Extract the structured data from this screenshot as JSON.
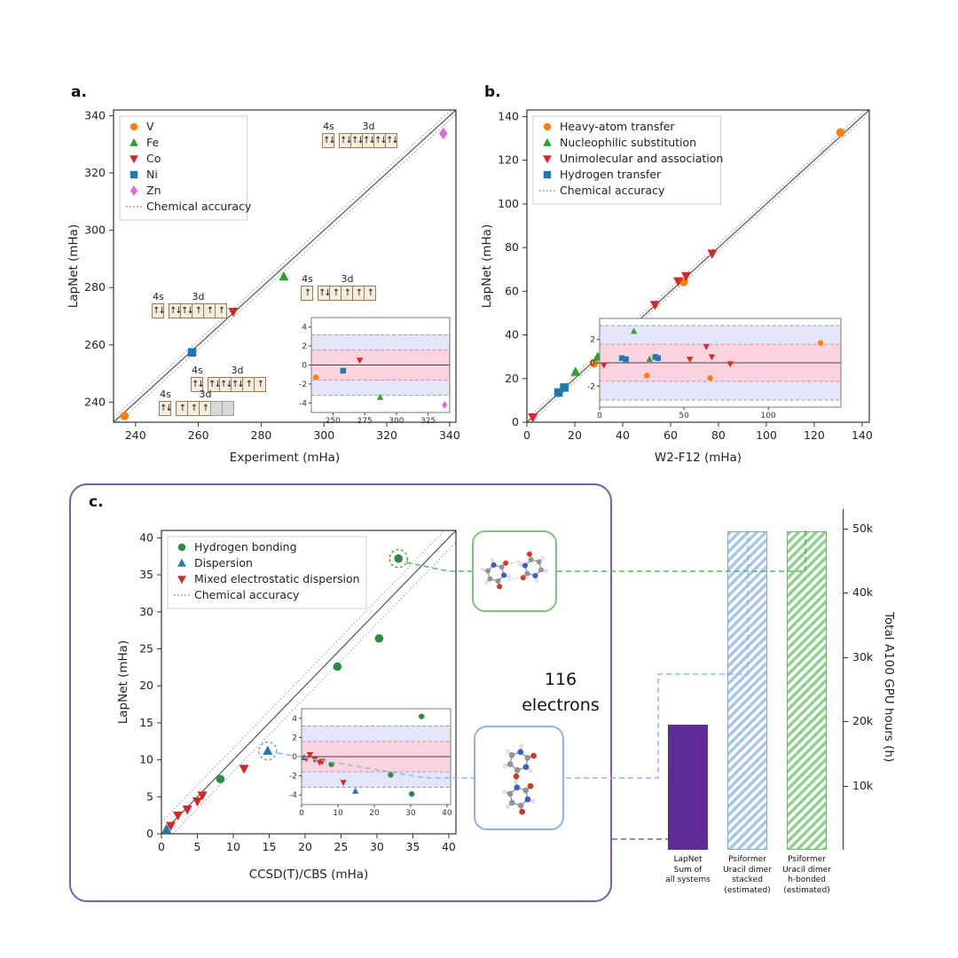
{
  "panels": {
    "a": {
      "label": "a.",
      "configs": [
        {
          "id": "cfg-zn",
          "s_label": "4s",
          "d_label": "3d",
          "s": [
            "ud"
          ],
          "d": [
            "ud",
            "ud",
            "ud",
            "ud",
            "ud"
          ]
        },
        {
          "id": "cfg-mid",
          "s_label": "4s",
          "d_label": "3d",
          "s": [
            "u"
          ],
          "d": [
            "ud",
            "u",
            "u",
            "u",
            "u"
          ]
        },
        {
          "id": "cfg-left",
          "s_label": "4s",
          "d_label": "3d",
          "s": [
            "ud"
          ],
          "d": [
            "ud",
            "ud",
            "u",
            "u",
            "u"
          ]
        },
        {
          "id": "cfg-ni",
          "s_label": "4s",
          "d_label": "3d",
          "s": [
            "ud"
          ],
          "d": [
            "ud",
            "ud",
            "ud",
            "u",
            "u"
          ]
        },
        {
          "id": "cfg-v",
          "s_label": "4s",
          "d_label": "3d",
          "s": [
            "ud"
          ],
          "d": [
            "u",
            "u",
            "u",
            "",
            ""
          ]
        }
      ]
    },
    "b": {
      "label": "b."
    },
    "c": {
      "label": "c."
    }
  },
  "captions": {
    "electrons_line1": "116",
    "electrons_line2": "electrons"
  },
  "molecule_colors": {
    "oxygen": "#cc3a2a",
    "nitrogen": "#3a5fcd",
    "carbon": "#8f959c",
    "hydrogen": "#e9e9e9"
  },
  "connector_colors": {
    "green": "#55b85c",
    "blue": "#8fb8e8",
    "purple": "#7b5ea7"
  },
  "chart_data": [
    {
      "id": "a",
      "type": "scatter",
      "xlabel": "Experiment (mHa)",
      "ylabel": "LapNet (mHa)",
      "xlim": [
        233,
        342
      ],
      "ylim": [
        233,
        342
      ],
      "xticks": [
        240,
        260,
        280,
        300,
        320,
        340
      ],
      "yticks": [
        240,
        260,
        280,
        300,
        320,
        340
      ],
      "accuracy_mha": 1.59,
      "legend": [
        {
          "label": "V",
          "marker": "circle",
          "color": "#ff7f0e"
        },
        {
          "label": "Fe",
          "marker": "triangle-up",
          "color": "#2ca02c"
        },
        {
          "label": "Co",
          "marker": "triangle-down",
          "color": "#d62728"
        },
        {
          "label": "Ni",
          "marker": "square",
          "color": "#1f77b4"
        },
        {
          "label": "Zn",
          "marker": "diamond",
          "color": "#da70d6"
        },
        {
          "label": "Chemical accuracy",
          "marker": "dotted",
          "color": "#888888"
        }
      ],
      "series": [
        {
          "name": "V",
          "marker": "circle",
          "color": "#ff7f0e",
          "points": [
            [
              236.5,
              235.2
            ]
          ]
        },
        {
          "name": "Fe",
          "marker": "triangle-up",
          "color": "#2ca02c",
          "points": [
            [
              287.2,
              283.8
            ]
          ]
        },
        {
          "name": "Co",
          "marker": "triangle-down",
          "color": "#d62728",
          "points": [
            [
              271.1,
              271.6
            ]
          ]
        },
        {
          "name": "Ni",
          "marker": "square",
          "color": "#1f77b4",
          "points": [
            [
              258.0,
              257.4
            ]
          ]
        },
        {
          "name": "Zn",
          "marker": "diamond",
          "color": "#da70d6",
          "points": [
            [
              338.0,
              333.8
            ]
          ]
        }
      ],
      "inset": {
        "xlim": [
          233,
          342
        ],
        "ylim": [
          -5,
          5
        ],
        "xticks": [
          250,
          275,
          300,
          325
        ],
        "yticks": [
          -4,
          -2,
          0,
          2,
          4
        ],
        "inner_band": 1.59,
        "outer_band": 3.19
      }
    },
    {
      "id": "b",
      "type": "scatter",
      "xlabel": "W2-F12 (mHa)",
      "ylabel": "LapNet (mHa)",
      "xlim": [
        0,
        143
      ],
      "ylim": [
        0,
        143
      ],
      "xticks": [
        0,
        20,
        40,
        60,
        80,
        100,
        120,
        140
      ],
      "yticks": [
        0,
        20,
        40,
        60,
        80,
        100,
        120,
        140
      ],
      "accuracy_mha": 1.59,
      "legend": [
        {
          "label": "Heavy-atom transfer",
          "marker": "circle",
          "color": "#ff7f0e"
        },
        {
          "label": "Nucleophilic substitution",
          "marker": "triangle-up",
          "color": "#2ca02c"
        },
        {
          "label": "Unimolecular and association",
          "marker": "triangle-down",
          "color": "#d62728"
        },
        {
          "label": "Hydrogen transfer",
          "marker": "square",
          "color": "#1f77b4"
        },
        {
          "label": "Chemical accuracy",
          "marker": "dotted",
          "color": "#888888"
        }
      ],
      "series": [
        {
          "name": "Heavy-atom transfer",
          "marker": "circle",
          "color": "#ff7f0e",
          "points": [
            [
              28.0,
              26.9
            ],
            [
              65.5,
              64.2
            ],
            [
              131.0,
              132.7
            ]
          ]
        },
        {
          "name": "Nucleophilic substitution",
          "marker": "triangle-up",
          "color": "#2ca02c",
          "points": [
            [
              20.3,
              23.0
            ],
            [
              29.6,
              29.9
            ]
          ]
        },
        {
          "name": "Unimolecular and association",
          "marker": "triangle-down",
          "color": "#d62728",
          "points": [
            [
              2.5,
              2.3
            ],
            [
              53.5,
              53.8
            ],
            [
              63.2,
              64.6
            ],
            [
              66.5,
              67.0
            ],
            [
              77.4,
              77.3
            ]
          ]
        },
        {
          "name": "Hydrogen transfer",
          "marker": "square",
          "color": "#1f77b4",
          "points": [
            [
              13.2,
              13.6
            ],
            [
              15.6,
              15.9
            ],
            [
              33.0,
              33.5
            ],
            [
              34.6,
              35.0
            ]
          ]
        }
      ],
      "inset": {
        "xlim": [
          0,
          143
        ],
        "ylim": [
          -3.8,
          3.8
        ],
        "xticks": [
          0,
          50,
          100
        ],
        "yticks": [
          -2,
          0,
          2
        ],
        "inner_band": 1.59,
        "outer_band": 3.19
      }
    },
    {
      "id": "c",
      "type": "scatter",
      "xlabel": "CCSD(T)/CBS (mHa)",
      "ylabel": "LapNet (mHa)",
      "xlim": [
        0,
        41
      ],
      "ylim": [
        0,
        41
      ],
      "xticks": [
        0,
        5,
        10,
        15,
        20,
        25,
        30,
        35,
        40
      ],
      "yticks": [
        0,
        5,
        10,
        15,
        20,
        25,
        30,
        35,
        40
      ],
      "accuracy_mha": 1.59,
      "legend": [
        {
          "label": "Hydrogen bonding",
          "marker": "circle",
          "color": "#2e8b45"
        },
        {
          "label": "Dispersion",
          "marker": "triangle-up",
          "color": "#1f77b4"
        },
        {
          "label": "Mixed electrostatic dispersion",
          "marker": "triangle-down",
          "color": "#d62728"
        },
        {
          "label": "Chemical accuracy",
          "marker": "dotted",
          "color": "#888888"
        }
      ],
      "series": [
        {
          "name": "Hydrogen bonding",
          "marker": "circle",
          "color": "#2e8b45",
          "points": [
            [
              8.2,
              7.4
            ],
            [
              24.5,
              22.6
            ],
            [
              30.3,
              26.4
            ],
            [
              33.0,
              37.2
            ]
          ]
        },
        {
          "name": "Dispersion",
          "marker": "triangle-up",
          "color": "#1f77b4",
          "points": [
            [
              0.7,
              0.6
            ],
            [
              14.8,
              11.2
            ]
          ]
        },
        {
          "name": "Mixed electrostatic dispersion",
          "marker": "triangle-down",
          "color": "#d62728",
          "points": [
            [
              1.3,
              1.1
            ],
            [
              2.3,
              2.5
            ],
            [
              3.6,
              3.3
            ],
            [
              5.0,
              4.4
            ],
            [
              5.7,
              5.2
            ],
            [
              11.5,
              8.8
            ]
          ]
        }
      ],
      "highlights": [
        {
          "x": 33.0,
          "y": 37.2,
          "color": "#44a049"
        },
        {
          "x": 14.8,
          "y": 11.2,
          "color": "#6ba3d6"
        }
      ],
      "inset": {
        "xlim": [
          0,
          41
        ],
        "ylim": [
          -5,
          5
        ],
        "xticks": [
          0,
          10,
          20,
          30,
          40
        ],
        "yticks": [
          -4,
          -2,
          0,
          2,
          4
        ],
        "inner_band": 1.59,
        "outer_band": 3.19
      }
    },
    {
      "id": "gpu",
      "type": "bar",
      "ylabel": "Total A100 GPU hours (h)",
      "categories": [
        "LapNet\nSum of\nall systems",
        "Psiformer\nUracil dimer\nstacked\n(estimated)",
        "Psiformer\nUracil dimer\nh-bonded\n(estimated)"
      ],
      "values": [
        19500,
        49500,
        49500
      ],
      "ylim": [
        0,
        53000
      ],
      "yticks": [
        10000,
        20000,
        30000,
        40000,
        50000
      ],
      "ytick_labels": [
        "10k",
        "20k",
        "30k",
        "40k",
        "50k"
      ],
      "bar_styles": [
        {
          "kind": "solid",
          "color": "#5e2b97",
          "edge": "#5e2b97"
        },
        {
          "kind": "hatch",
          "color": "#a9c6e8",
          "edge": "#7fa8d2"
        },
        {
          "kind": "hatch",
          "color": "#8fd18f",
          "edge": "#67b967"
        }
      ]
    }
  ]
}
